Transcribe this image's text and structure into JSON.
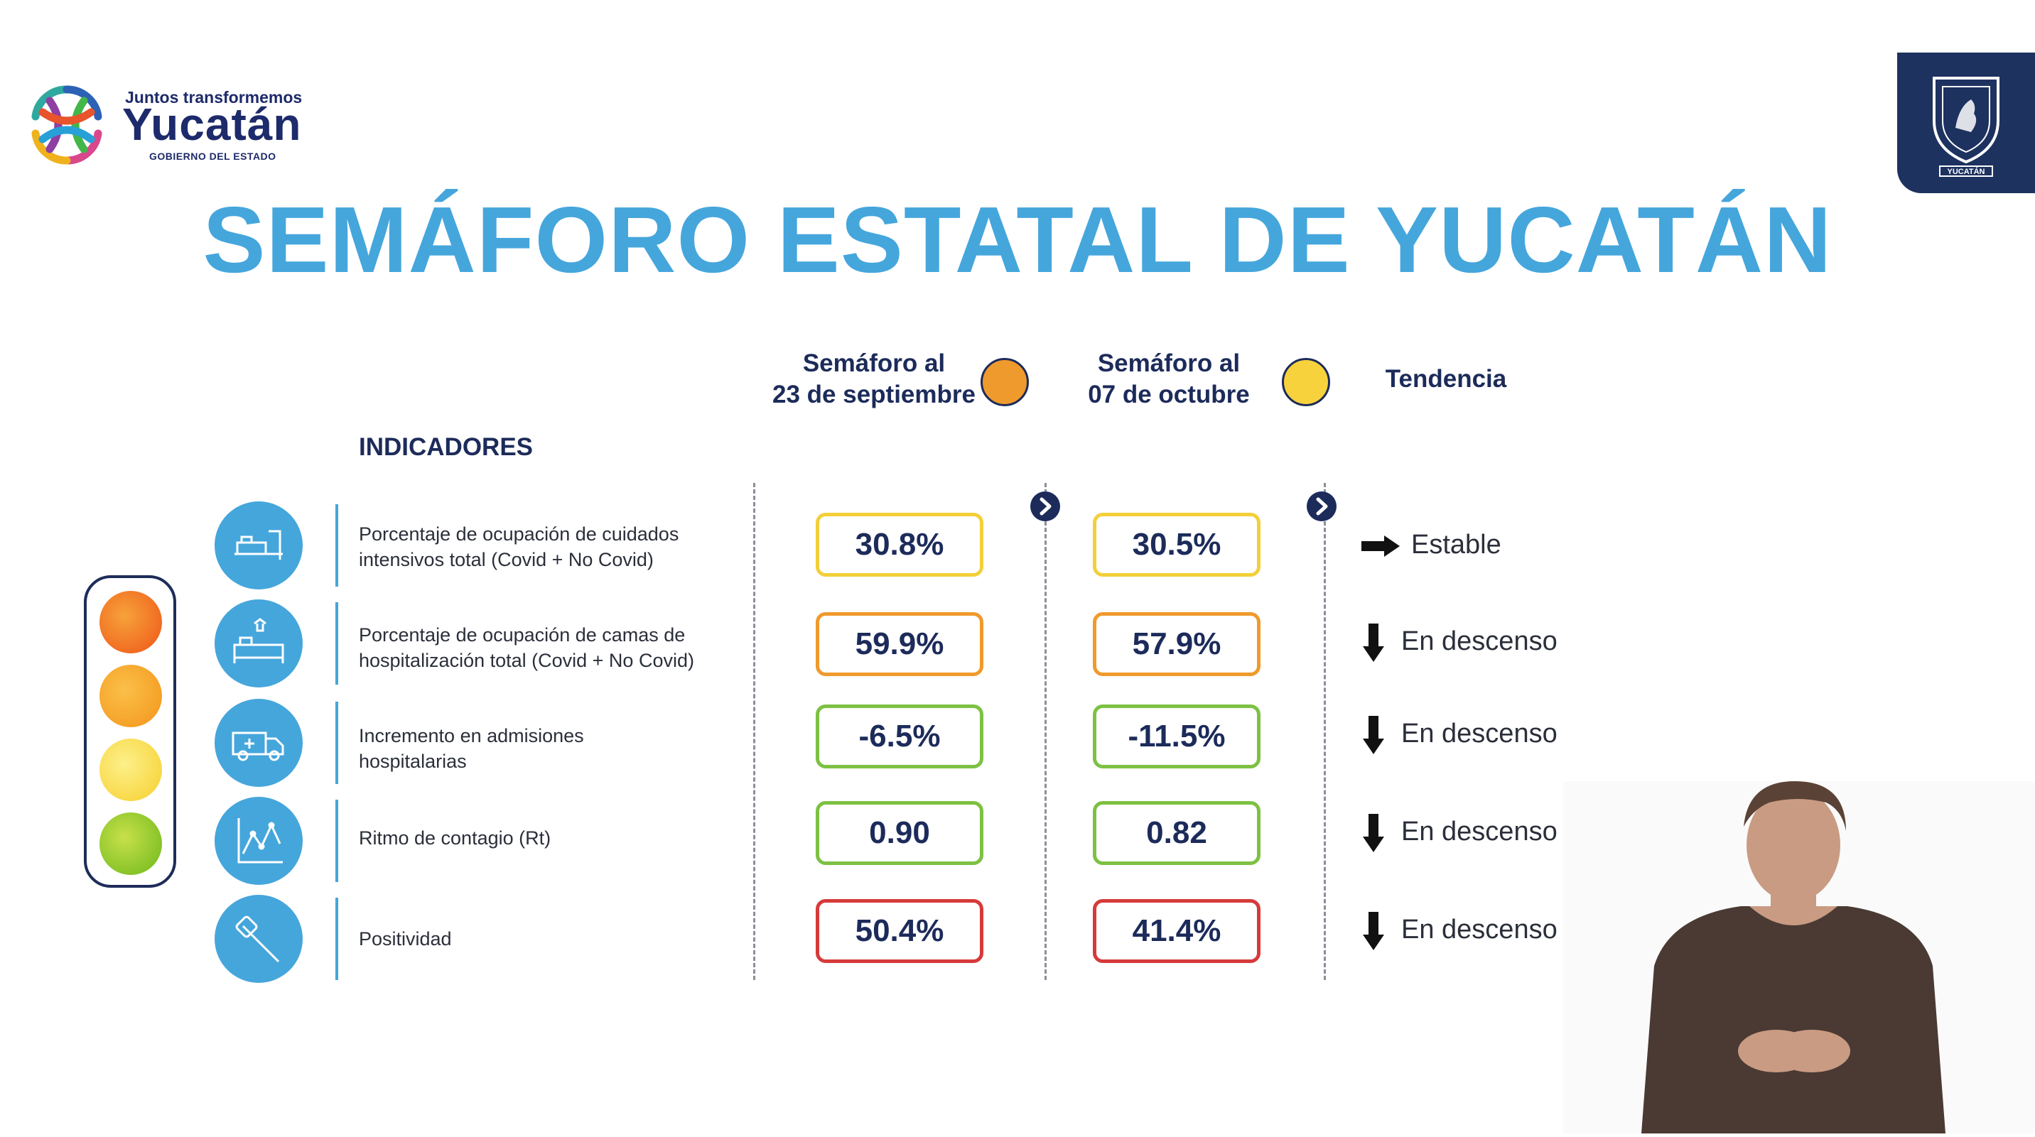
{
  "header": {
    "logo_tagline": "Juntos transformemos",
    "logo_name": "Yucatán",
    "logo_subtitle": "GOBIERNO DEL ESTADO",
    "crest_label": "YUCATÁN"
  },
  "title": "SEMÁFORO ESTATAL DE YUCATÁN",
  "columns": {
    "sept": {
      "line1": "Semáforo al",
      "line2": "23 de septiembre",
      "color": "#ef9a2c"
    },
    "oct": {
      "line1": "Semáforo al",
      "line2": "07 de octubre",
      "color": "#f7d23c"
    },
    "trend": "Tendencia"
  },
  "indicators_label": "INDICADORES",
  "traffic_light": [
    "#f06a1e",
    "#f6a623",
    "#f8d93a",
    "#82c21d"
  ],
  "rows": [
    {
      "icon": "icu-bed-icon",
      "line1": "Porcentaje de ocupación de cuidados",
      "line2": "intensivos total (Covid + No Covid)",
      "sept": "30.8%",
      "oct": "30.5%",
      "sept_color": "#f3cf3a",
      "oct_color": "#f3cf3a",
      "trend_icon": "arrow-right",
      "trend": "Estable"
    },
    {
      "icon": "hospital-bed-icon",
      "line1": "Porcentaje de ocupación de camas de",
      "line2": "hospitalización total (Covid + No Covid)",
      "sept": "59.9%",
      "oct": "57.9%",
      "sept_color": "#ef9a2c",
      "oct_color": "#ef9a2c",
      "trend_icon": "arrow-down",
      "trend": "En descenso"
    },
    {
      "icon": "ambulance-icon",
      "line1": "Incremento en admisiones",
      "line2": "hospitalarias",
      "sept": "-6.5%",
      "oct": "-11.5%",
      "sept_color": "#7dc143",
      "oct_color": "#7dc143",
      "trend_icon": "arrow-down",
      "trend": "En descenso"
    },
    {
      "icon": "contagion-chart-icon",
      "line1": "Ritmo de contagio (Rt)",
      "line2": "",
      "sept": "0.90",
      "oct": "0.82",
      "sept_color": "#7dc143",
      "oct_color": "#7dc143",
      "trend_icon": "arrow-down",
      "trend": "En descenso"
    },
    {
      "icon": "test-swab-icon",
      "line1": "Positividad",
      "line2": "",
      "sept": "50.4%",
      "oct": "41.4%",
      "sept_color": "#d63a3a",
      "oct_color": "#d63a3a",
      "trend_icon": "arrow-down",
      "trend": "En descenso"
    }
  ]
}
